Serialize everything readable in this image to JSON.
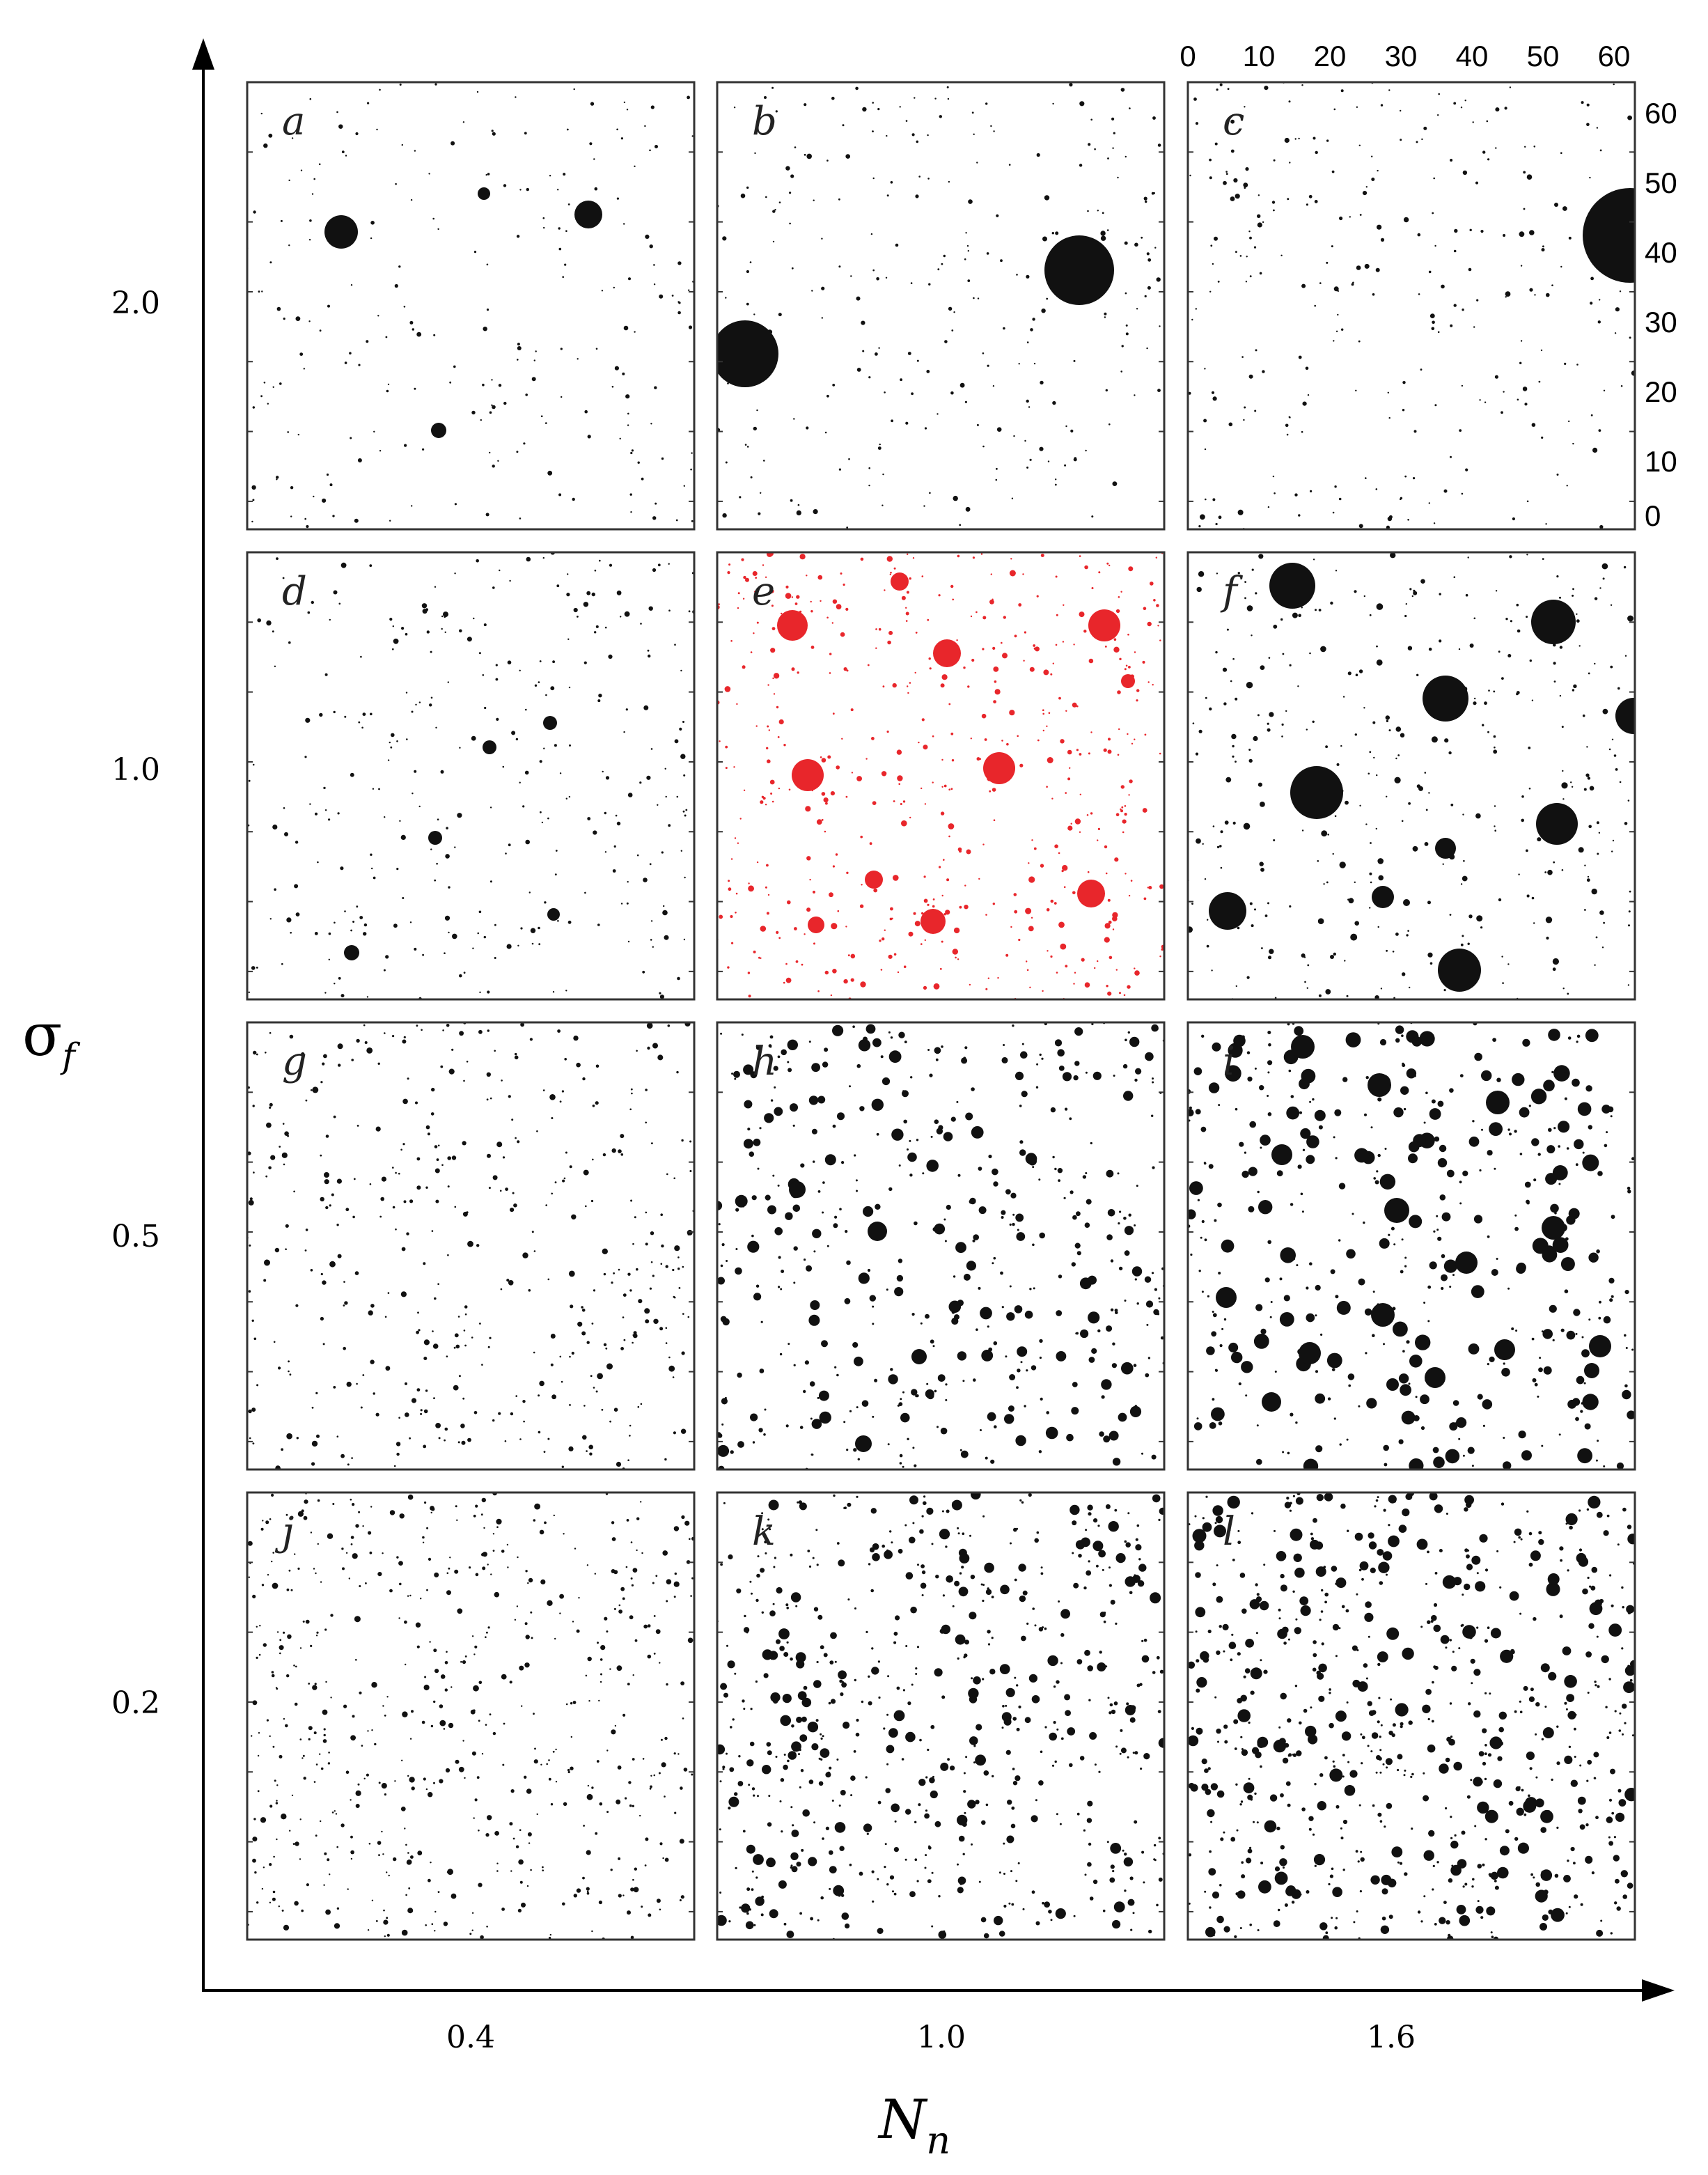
{
  "axes": {
    "y_title": "σ",
    "y_title_sub": "f",
    "x_title": "N",
    "x_title_sub": "n"
  },
  "row_labels": [
    "2.0",
    "1.0",
    "0.5",
    "0.2"
  ],
  "col_labels": [
    "0.4",
    "1.0",
    "1.6"
  ],
  "scale_ticks_top": [
    "0",
    "10",
    "20",
    "30",
    "40",
    "50",
    "60"
  ],
  "scale_ticks_right": [
    "60",
    "50",
    "40",
    "30",
    "20",
    "10",
    "0"
  ],
  "panels": [
    {
      "letter": "a",
      "row": 0,
      "col": 0,
      "color": "#111111",
      "highlight": false
    },
    {
      "letter": "b",
      "row": 0,
      "col": 1,
      "color": "#111111",
      "highlight": false
    },
    {
      "letter": "c",
      "row": 0,
      "col": 2,
      "color": "#111111",
      "highlight": false
    },
    {
      "letter": "d",
      "row": 1,
      "col": 0,
      "color": "#111111",
      "highlight": false
    },
    {
      "letter": "e",
      "row": 1,
      "col": 1,
      "color": "#e8262b",
      "highlight": true
    },
    {
      "letter": "f",
      "row": 1,
      "col": 2,
      "color": "#111111",
      "highlight": false
    },
    {
      "letter": "g",
      "row": 2,
      "col": 0,
      "color": "#111111",
      "highlight": false
    },
    {
      "letter": "h",
      "row": 2,
      "col": 1,
      "color": "#111111",
      "highlight": false
    },
    {
      "letter": "i",
      "row": 2,
      "col": 2,
      "color": "#111111",
      "highlight": false
    },
    {
      "letter": "j",
      "row": 3,
      "col": 0,
      "color": "#111111",
      "highlight": false
    },
    {
      "letter": "k",
      "row": 3,
      "col": 1,
      "color": "#111111",
      "highlight": false
    },
    {
      "letter": "l",
      "row": 3,
      "col": 2,
      "color": "#111111",
      "highlight": false
    }
  ],
  "colors": {
    "dots": "#111111",
    "highlight": "#e8262b",
    "frame": "#333333"
  }
}
